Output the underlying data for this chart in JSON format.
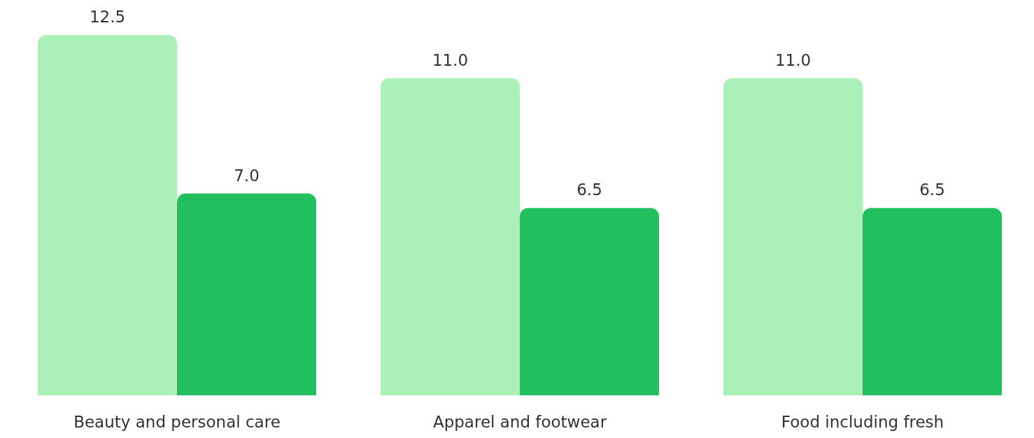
{
  "chart_data": {
    "type": "bar",
    "categories": [
      "Beauty and personal care",
      "Apparel and footwear",
      "Food including fresh"
    ],
    "series": [
      {
        "color": "#abf0b8",
        "values": [
          12.5,
          11.0,
          11.0
        ],
        "value_labels": [
          "12.5",
          "11.0",
          "11.0"
        ]
      },
      {
        "color": "#22bf5f",
        "values": [
          7.0,
          6.5,
          6.5
        ],
        "value_labels": [
          "7.0",
          "6.5",
          "6.5"
        ]
      }
    ],
    "ylim": [
      0,
      12.5
    ],
    "grid": false,
    "legend": false
  }
}
